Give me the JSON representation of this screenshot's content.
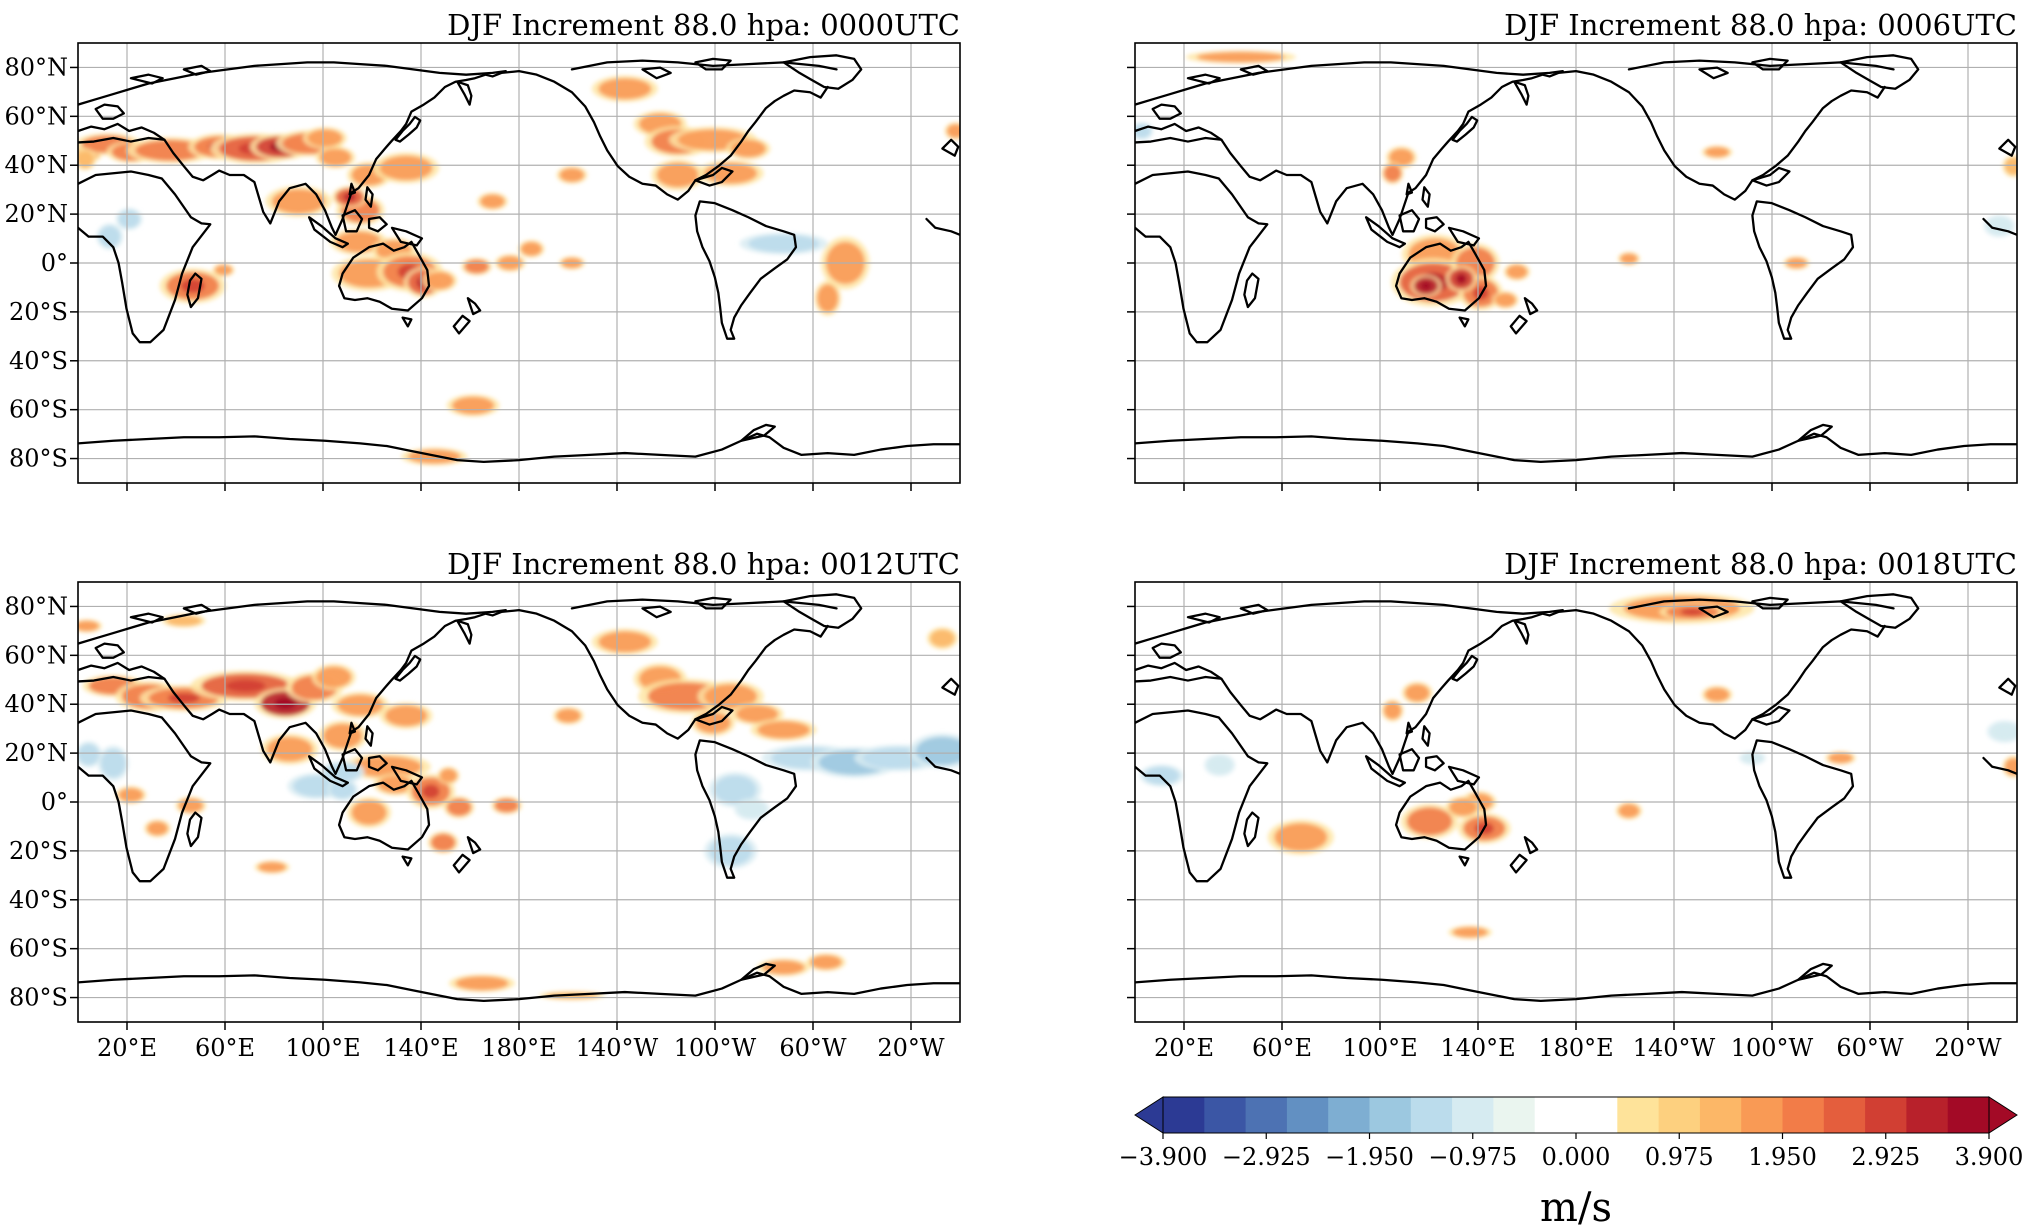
{
  "figure": {
    "panels": [
      {
        "id": "0000UTC",
        "title": "DJF Increment 88.0 hpa: 0000UTC",
        "show_lon_labels": false,
        "show_lat_labels": true
      },
      {
        "id": "0006UTC",
        "title": "DJF Increment 88.0 hpa: 0006UTC",
        "show_lon_labels": false,
        "show_lat_labels": false
      },
      {
        "id": "0012UTC",
        "title": "DJF Increment 88.0 hpa: 0012UTC",
        "show_lon_labels": true,
        "show_lat_labels": true
      },
      {
        "id": "0018UTC",
        "title": "DJF Increment 88.0 hpa: 0018UTC",
        "show_lon_labels": true,
        "show_lat_labels": false
      }
    ],
    "lat_ticks": [
      "80°N",
      "60°N",
      "40°N",
      "20°N",
      "0°",
      "20°S",
      "40°S",
      "60°S",
      "80°S"
    ],
    "lon_ticks": [
      "20°E",
      "60°E",
      "100°E",
      "140°E",
      "180°E",
      "140°W",
      "100°W",
      "60°W",
      "20°W"
    ],
    "colorbar": {
      "ticks": [
        "−3.900",
        "−2.925",
        "−1.950",
        "−0.975",
        "0.000",
        "0.975",
        "1.950",
        "2.925",
        "3.900"
      ],
      "unit": "m/s",
      "min": -3.9,
      "max": 3.9,
      "colors": [
        "#2c3a94",
        "#3b56a5",
        "#4d72b3",
        "#6290c2",
        "#7eaed2",
        "#9cc8e0",
        "#bbdcec",
        "#d6ebf1",
        "#eaf5ef",
        "#ffffff",
        "#ffffff",
        "#fee39a",
        "#fdd07f",
        "#fcb767",
        "#f99a55",
        "#f27c48",
        "#e45e3d",
        "#d13f33",
        "#b8212b",
        "#a30a26"
      ]
    }
  }
}
